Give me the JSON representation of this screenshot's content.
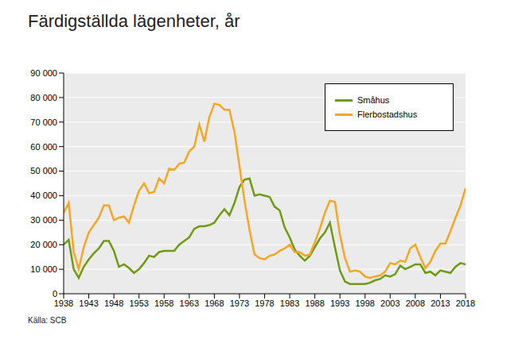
{
  "chart_data": {
    "type": "line",
    "title": "Färdigställda lägenheter, år",
    "source": "Källa: SCB",
    "x": [
      1938,
      1939,
      1940,
      1941,
      1942,
      1943,
      1944,
      1945,
      1946,
      1947,
      1948,
      1949,
      1950,
      1951,
      1952,
      1953,
      1954,
      1955,
      1956,
      1957,
      1958,
      1959,
      1960,
      1961,
      1962,
      1963,
      1964,
      1965,
      1966,
      1967,
      1968,
      1969,
      1970,
      1971,
      1972,
      1973,
      1974,
      1975,
      1976,
      1977,
      1978,
      1979,
      1980,
      1981,
      1982,
      1983,
      1984,
      1985,
      1986,
      1987,
      1988,
      1989,
      1990,
      1991,
      1992,
      1993,
      1994,
      1995,
      1996,
      1997,
      1998,
      1999,
      2000,
      2001,
      2002,
      2003,
      2004,
      2005,
      2006,
      2007,
      2008,
      2009,
      2010,
      2011,
      2012,
      2013,
      2014,
      2015,
      2016,
      2017,
      2018
    ],
    "series": [
      {
        "name": "Småhus",
        "color": "#6f9a12",
        "values": [
          20000,
          22000,
          10000,
          6500,
          11000,
          14000,
          16500,
          18500,
          21500,
          21500,
          17500,
          11000,
          12000,
          10500,
          8500,
          10000,
          12500,
          15500,
          15000,
          17000,
          17500,
          17500,
          17500,
          20000,
          21500,
          23000,
          26500,
          27500,
          27500,
          28000,
          29000,
          32000,
          34500,
          32000,
          37000,
          43500,
          46500,
          47000,
          40000,
          40500,
          40000,
          39500,
          35500,
          34000,
          27000,
          23000,
          18000,
          15500,
          13500,
          15500,
          19000,
          22500,
          25000,
          29000,
          19000,
          9500,
          5000,
          4000,
          4000,
          4000,
          4000,
          4500,
          5500,
          6000,
          7500,
          7000,
          8000,
          11500,
          10000,
          11000,
          12000,
          12000,
          8500,
          9000,
          7500,
          9500,
          9000,
          8500,
          11000,
          12500,
          12000
        ]
      },
      {
        "name": "Flerbostadshus",
        "color": "#f5a623",
        "values": [
          33000,
          37000,
          17000,
          10000,
          19000,
          25000,
          28000,
          31000,
          36000,
          36000,
          30000,
          31000,
          31500,
          29000,
          36000,
          42000,
          45000,
          41000,
          41500,
          47000,
          45000,
          51000,
          50500,
          53000,
          53500,
          58000,
          60000,
          69000,
          62000,
          72000,
          77500,
          77000,
          75000,
          75000,
          66000,
          52000,
          38000,
          26000,
          16000,
          14500,
          14000,
          15500,
          16000,
          17500,
          18500,
          20000,
          17000,
          17000,
          15500,
          16000,
          21000,
          26500,
          33000,
          38000,
          37500,
          24000,
          14500,
          9000,
          9500,
          9000,
          7000,
          6500,
          7000,
          7500,
          9000,
          12500,
          12000,
          13500,
          13000,
          18500,
          20000,
          15000,
          10500,
          13000,
          17500,
          20500,
          20500,
          25500,
          31000,
          36000,
          43000
        ]
      }
    ],
    "xlim": [
      1938,
      2018
    ],
    "xticks": [
      1938,
      1943,
      1948,
      1953,
      1958,
      1963,
      1968,
      1973,
      1978,
      1983,
      1988,
      1993,
      1998,
      2003,
      2008,
      2013,
      2018
    ],
    "ylim": [
      0,
      90000
    ],
    "yticks": [
      0,
      {
        "value": 10000,
        "label": "10 000"
      },
      {
        "value": 20000,
        "label": "20 000"
      },
      {
        "value": 30000,
        "label": "30 000"
      },
      {
        "value": 40000,
        "label": "40 000"
      },
      {
        "value": 50000,
        "label": "50 000"
      },
      {
        "value": 60000,
        "label": "60 000"
      },
      {
        "value": 70000,
        "label": "70 000"
      },
      {
        "value": 80000,
        "label": "80 000"
      },
      {
        "value": 90000,
        "label": "90 000"
      }
    ],
    "grid": true,
    "legend": "upper right"
  }
}
